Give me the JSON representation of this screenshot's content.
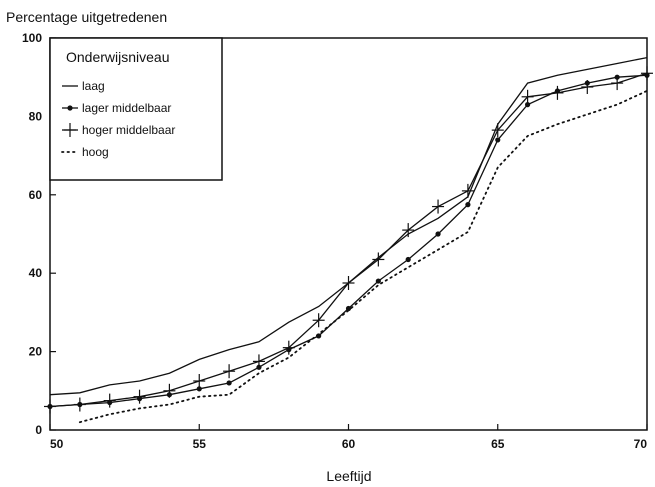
{
  "chart_data": {
    "type": "line",
    "ylabel": "Percentage uitgetredenen",
    "xlabel": "Leeftijd",
    "xlim": [
      50,
      70
    ],
    "ylim": [
      0,
      100
    ],
    "x_ticks": [
      "50",
      "55",
      "60",
      "65",
      "70"
    ],
    "y_ticks": [
      "0",
      "20",
      "40",
      "60",
      "80",
      "100"
    ],
    "grid": false,
    "legend": {
      "title": "Onderwijsniveau",
      "placement": "top-left"
    },
    "x": [
      50,
      51,
      52,
      53,
      54,
      55,
      56,
      57,
      58,
      59,
      60,
      61,
      62,
      63,
      64,
      65,
      66,
      67,
      68,
      69,
      70
    ],
    "series": [
      {
        "name": "laag",
        "style": "solid",
        "values": [
          9,
          9.5,
          11.5,
          12.5,
          14.5,
          18,
          20.5,
          22.5,
          27.5,
          31.5,
          37.5,
          44,
          50,
          54,
          59.5,
          78,
          88.5,
          90.5,
          92,
          93.5,
          95
        ]
      },
      {
        "name": "lager middelbaar",
        "style": "dot-marker",
        "values": [
          6,
          6.5,
          7,
          8,
          9,
          10.5,
          12,
          16,
          20.5,
          24,
          31,
          38,
          43.5,
          50,
          57.5,
          74,
          83,
          86.5,
          88.5,
          90,
          90.5
        ]
      },
      {
        "name": "hoger middelbaar",
        "style": "plus-marker",
        "values": [
          6,
          6.5,
          7.5,
          8.5,
          10,
          12.5,
          15,
          17.5,
          21,
          28,
          37.5,
          43.5,
          51,
          57,
          61,
          76.5,
          85,
          86,
          87.5,
          88.5,
          91
        ]
      },
      {
        "name": "hoog",
        "style": "dotted",
        "values": [
          null,
          2,
          4,
          5.5,
          6.5,
          8.5,
          9,
          14.5,
          18.5,
          24.5,
          30.5,
          37,
          41.5,
          46,
          50.5,
          67,
          75,
          78,
          80.5,
          83,
          86.5
        ]
      }
    ]
  }
}
